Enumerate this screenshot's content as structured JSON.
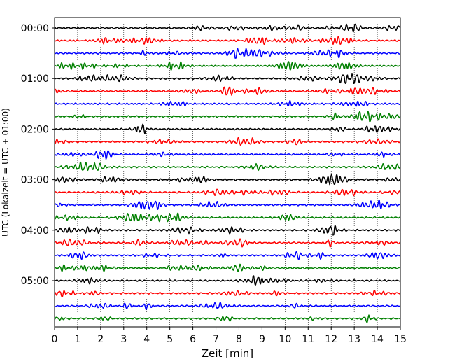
{
  "chart_data": {
    "type": "line",
    "title": "",
    "xlabel": "Zeit  [min]",
    "ylabel": "UTC (Lokalzeit = UTC + 01:00)",
    "xlim": [
      0,
      15
    ],
    "x_ticks": [
      "0",
      "1",
      "2",
      "3",
      "4",
      "5",
      "6",
      "7",
      "8",
      "9",
      "10",
      "11",
      "12",
      "13",
      "14",
      "15"
    ],
    "y_ticks": [
      "00:00",
      "01:00",
      "02:00",
      "03:00",
      "04:00",
      "05:00"
    ],
    "grid": {
      "x": true,
      "y": false,
      "style": "dotted"
    },
    "trace_interval_minutes": 15,
    "trace_count": 24,
    "trace_colors": [
      "#000000",
      "#ff0000",
      "#0000ff",
      "#008000"
    ],
    "traces": [
      {
        "start": "00:00"
      },
      {
        "start": "00:15"
      },
      {
        "start": "00:30"
      },
      {
        "start": "00:45"
      },
      {
        "start": "01:00"
      },
      {
        "start": "01:15"
      },
      {
        "start": "01:30"
      },
      {
        "start": "01:45"
      },
      {
        "start": "02:00"
      },
      {
        "start": "02:15"
      },
      {
        "start": "02:30"
      },
      {
        "start": "02:45"
      },
      {
        "start": "03:00"
      },
      {
        "start": "03:15"
      },
      {
        "start": "03:30"
      },
      {
        "start": "03:45"
      },
      {
        "start": "04:00"
      },
      {
        "start": "04:15"
      },
      {
        "start": "04:30"
      },
      {
        "start": "04:45"
      },
      {
        "start": "05:00"
      },
      {
        "start": "05:15"
      },
      {
        "start": "05:30"
      },
      {
        "start": "05:45"
      }
    ]
  }
}
